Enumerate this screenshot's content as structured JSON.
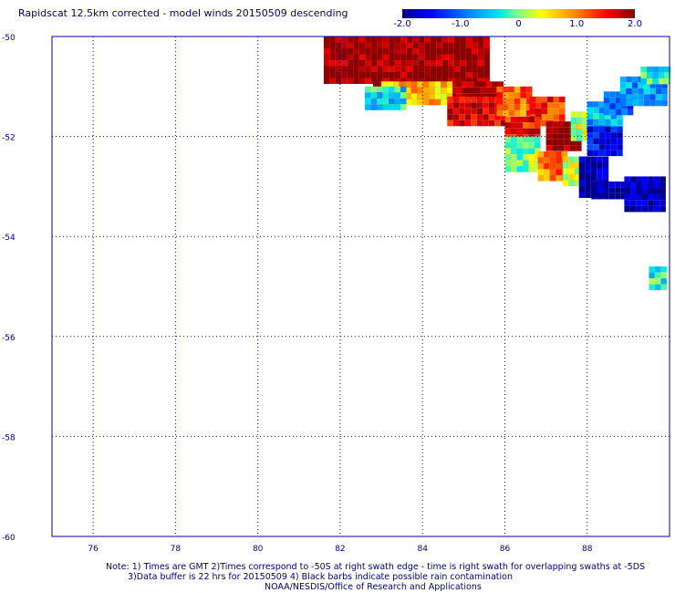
{
  "title": "Rapidscat 12.5km corrected - model winds 20150509 descending",
  "colorbar": {
    "ticks": [
      "-2.0",
      "-1.0",
      "0",
      "1.0",
      "2.0"
    ],
    "min": -2.0,
    "max": 2.0
  },
  "axes": {
    "x_ticks": [
      "76",
      "78",
      "80",
      "82",
      "84",
      "86",
      "88"
    ],
    "y_ticks": [
      "-50",
      "-52",
      "-54",
      "-56",
      "-58",
      "-60"
    ],
    "x_range": [
      75,
      90
    ],
    "y_range": [
      -60,
      -50
    ]
  },
  "notes": {
    "line1": "Note: 1) Times are GMT 2)Times correspond to -50S at right swath edge - time is right swath for overlapping swaths at -5DS",
    "line2": "3)Data buffer is 22 hrs for 20150509 4) Black barbs indicate possible rain contamination",
    "line3": "NOAA/NESDIS/Office of Research and Applications"
  },
  "chart_data": {
    "type": "heatmap",
    "title": "Rapidscat 12.5km corrected - model winds 20150509 descending",
    "value_range": [
      -2.0,
      2.0
    ],
    "xlim": [
      75,
      90
    ],
    "ylim": [
      -60,
      -50
    ],
    "grid": true,
    "swath_segments": [
      {
        "lon_start": 81.6,
        "lon_end": 85.6,
        "lat_top": -50.0,
        "lat_bottom": -50.9,
        "value": 2.0
      },
      {
        "lon_start": 82.8,
        "lon_end": 85.9,
        "lat_top": -50.9,
        "lat_bottom": -51.2,
        "value": 2.0
      },
      {
        "lon_start": 83.0,
        "lon_end": 84.6,
        "lat_top": -50.9,
        "lat_bottom": -51.3,
        "value": 0.7
      },
      {
        "lon_start": 82.6,
        "lon_end": 83.6,
        "lat_top": -51.0,
        "lat_bottom": -51.4,
        "value": -0.4
      },
      {
        "lon_start": 84.6,
        "lon_end": 86.0,
        "lat_top": -51.2,
        "lat_bottom": -51.7,
        "value": 1.7
      },
      {
        "lon_start": 85.8,
        "lon_end": 86.6,
        "lat_top": -51.0,
        "lat_bottom": -51.6,
        "value": 1.1
      },
      {
        "lon_start": 86.6,
        "lon_end": 87.4,
        "lat_top": -51.2,
        "lat_bottom": -51.8,
        "value": 1.4
      },
      {
        "lon_start": 86.0,
        "lon_end": 86.8,
        "lat_top": -51.6,
        "lat_bottom": -52.0,
        "value": 1.5
      },
      {
        "lon_start": 87.0,
        "lon_end": 87.8,
        "lat_top": -51.7,
        "lat_bottom": -52.3,
        "value": 2.0
      },
      {
        "lon_start": 86.0,
        "lon_end": 86.8,
        "lat_top": -52.0,
        "lat_bottom": -52.7,
        "value": 0.1
      },
      {
        "lon_start": 86.8,
        "lon_end": 87.4,
        "lat_top": -52.3,
        "lat_bottom": -52.8,
        "value": 1.0
      },
      {
        "lon_start": 87.4,
        "lon_end": 88.0,
        "lat_top": -52.4,
        "lat_bottom": -53.0,
        "value": 0.3
      },
      {
        "lon_start": 87.6,
        "lon_end": 88.4,
        "lat_top": -51.5,
        "lat_bottom": -52.0,
        "value": 0.2
      },
      {
        "lon_start": 88.0,
        "lon_end": 88.8,
        "lat_top": -51.3,
        "lat_bottom": -51.8,
        "value": -0.6
      },
      {
        "lon_start": 88.4,
        "lon_end": 89.1,
        "lat_top": -51.1,
        "lat_bottom": -51.5,
        "value": -1.1
      },
      {
        "lon_start": 88.8,
        "lon_end": 89.9,
        "lat_top": -50.8,
        "lat_bottom": -51.3,
        "value": -0.7
      },
      {
        "lon_start": 89.3,
        "lon_end": 89.9,
        "lat_top": -50.6,
        "lat_bottom": -50.9,
        "value": -0.3
      },
      {
        "lon_start": 88.0,
        "lon_end": 88.8,
        "lat_top": -51.8,
        "lat_bottom": -52.3,
        "value": -1.5
      },
      {
        "lon_start": 87.8,
        "lon_end": 88.4,
        "lat_top": -52.4,
        "lat_bottom": -53.2,
        "value": -1.9
      },
      {
        "lon_start": 88.1,
        "lon_end": 89.8,
        "lat_top": -52.9,
        "lat_bottom": -53.2,
        "value": -2.0
      },
      {
        "lon_start": 88.9,
        "lon_end": 89.9,
        "lat_top": -52.8,
        "lat_bottom": -53.5,
        "value": -1.9
      },
      {
        "lon_start": 89.5,
        "lon_end": 89.9,
        "lat_top": -54.6,
        "lat_bottom": -55.0,
        "value": -0.2
      }
    ]
  },
  "colors": {
    "text": "#000080",
    "grid": "#0000aa"
  }
}
